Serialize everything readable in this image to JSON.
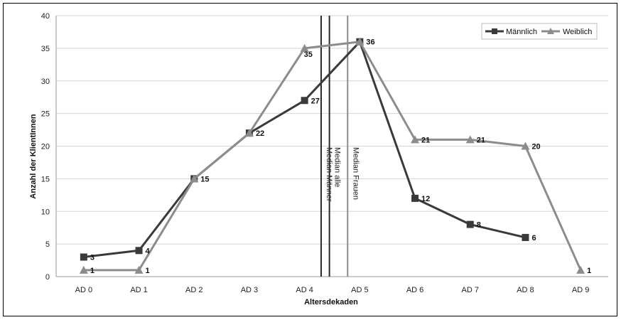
{
  "chart_data": {
    "type": "line",
    "title": "",
    "xlabel": "Altersdekaden",
    "ylabel": "Anzahl der KlientInnen",
    "ylim": [
      0,
      40
    ],
    "yticks": [
      0,
      5,
      10,
      15,
      20,
      25,
      30,
      35,
      40
    ],
    "grid": true,
    "legend_position": "top-right",
    "categories": [
      "AD 0",
      "AD 1",
      "AD 2",
      "AD 3",
      "AD 4",
      "AD 5",
      "AD 6",
      "AD 7",
      "AD 8",
      "AD 9"
    ],
    "series": [
      {
        "name": "Männlich",
        "marker": "square",
        "color": "#3a3a3a",
        "values": [
          3,
          4,
          15,
          22,
          27,
          36,
          12,
          8,
          6,
          null
        ],
        "labels": [
          "3",
          "4",
          "15",
          "22",
          "27",
          "36",
          "12",
          "8",
          "6",
          null
        ]
      },
      {
        "name": "Weiblich",
        "marker": "triangle",
        "color": "#8c8c8c",
        "values": [
          1,
          1,
          15,
          22,
          35,
          36,
          21,
          21,
          20,
          1
        ],
        "labels": [
          "1",
          "1",
          null,
          null,
          "35",
          null,
          "21",
          "21",
          "20",
          "1"
        ]
      }
    ],
    "reference_lines": [
      {
        "label": "Median Männer",
        "x": 4.3,
        "color": "#2a2a2a"
      },
      {
        "label": "Median alle",
        "x": 4.45,
        "color": "#2a2a2a"
      },
      {
        "label": "Median Frauen",
        "x": 4.78,
        "color": "#8c8c8c"
      }
    ]
  }
}
